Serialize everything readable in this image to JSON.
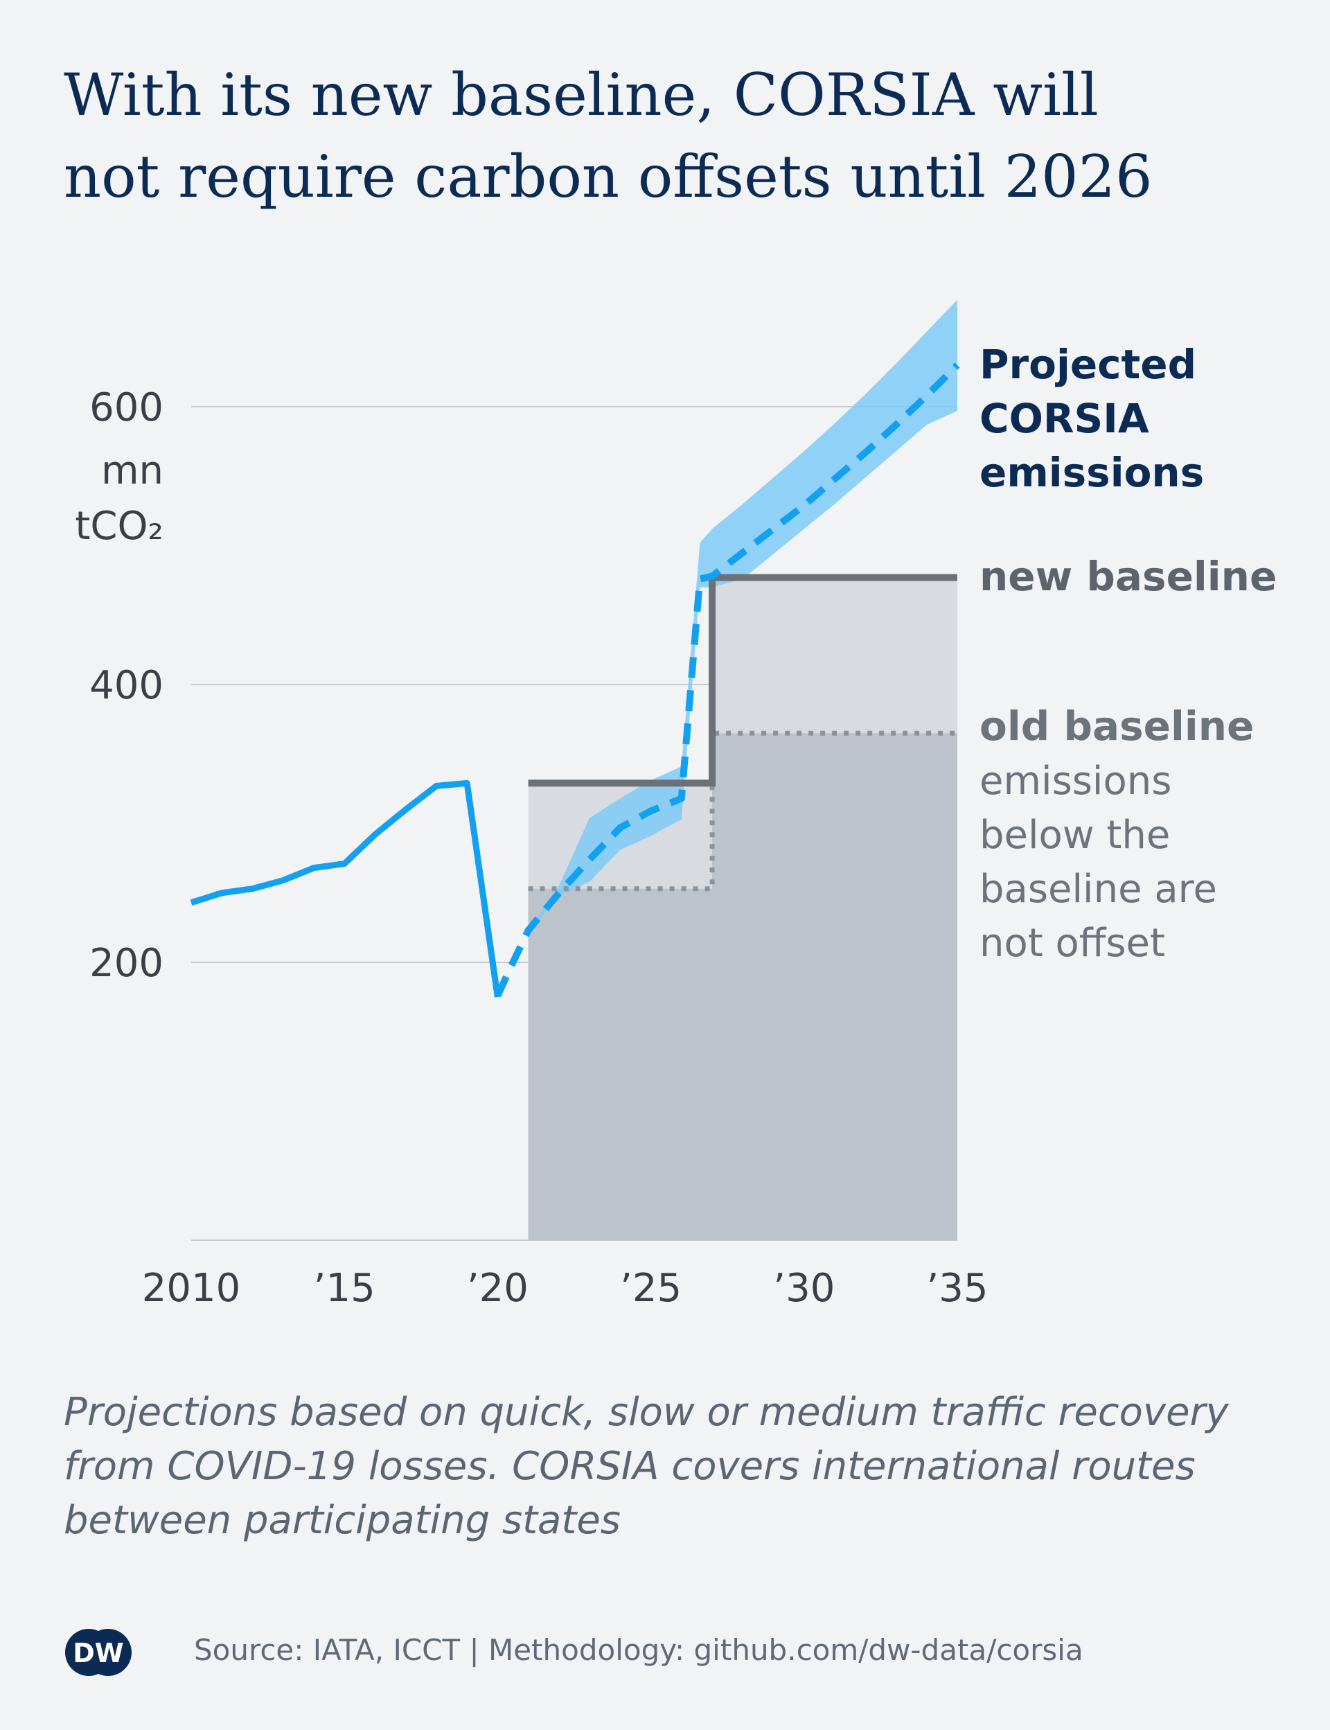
{
  "title_lines": [
    "With its new baseline, CORSIA will",
    "not require carbon offsets until 2026"
  ],
  "chart_data": {
    "type": "line",
    "y_unit_lines": [
      "mn",
      "tCO₂"
    ],
    "xlim": [
      2010,
      2035
    ],
    "ylim": [
      0,
      650
    ],
    "y_ticks": [
      {
        "value": 200,
        "label": "200"
      },
      {
        "value": 400,
        "label": "400"
      },
      {
        "value": 600,
        "label": "600"
      }
    ],
    "x_ticks": [
      {
        "value": 2010,
        "label": "2010"
      },
      {
        "value": 2015,
        "label": "’15"
      },
      {
        "value": 2020,
        "label": "’20"
      },
      {
        "value": 2025,
        "label": "’25"
      },
      {
        "value": 2030,
        "label": "’30"
      },
      {
        "value": 2035,
        "label": "’35"
      }
    ],
    "grid": true,
    "series": [
      {
        "key": "historical",
        "style": "solid",
        "color": "#12a0f0",
        "points": [
          [
            2010,
            243
          ],
          [
            2011,
            250
          ],
          [
            2012,
            253
          ],
          [
            2013,
            259
          ],
          [
            2014,
            268
          ],
          [
            2015,
            271
          ],
          [
            2016,
            292
          ],
          [
            2017,
            310
          ],
          [
            2018,
            327
          ],
          [
            2019,
            329
          ],
          [
            2020,
            175
          ]
        ]
      },
      {
        "key": "projected",
        "name_lines": [
          "Projected",
          "CORSIA",
          "emissions"
        ],
        "style": "dashed",
        "color": "#12a0f0",
        "points": [
          [
            2020,
            176
          ],
          [
            2020.5,
            200
          ],
          [
            2021,
            223
          ],
          [
            2022,
            250
          ],
          [
            2023,
            274
          ],
          [
            2024,
            297
          ],
          [
            2025,
            309
          ],
          [
            2026,
            318
          ],
          [
            2026.6,
            476
          ],
          [
            2027,
            478
          ],
          [
            2028,
            495
          ],
          [
            2029,
            512
          ],
          [
            2030,
            529
          ],
          [
            2031,
            548
          ],
          [
            2032,
            567
          ],
          [
            2033,
            587
          ],
          [
            2034,
            608
          ],
          [
            2035,
            630
          ]
        ],
        "band_upper": [
          [
            2021,
            223
          ],
          [
            2022,
            255
          ],
          [
            2023,
            304
          ],
          [
            2024,
            318
          ],
          [
            2025,
            331
          ],
          [
            2026,
            341
          ],
          [
            2026.6,
            502
          ],
          [
            2027,
            512
          ],
          [
            2028,
            530
          ],
          [
            2029,
            549
          ],
          [
            2030,
            568
          ],
          [
            2031,
            588
          ],
          [
            2032,
            609
          ],
          [
            2033,
            631
          ],
          [
            2034,
            654
          ],
          [
            2035,
            677
          ]
        ],
        "band_lower": [
          [
            2021,
            221
          ],
          [
            2022,
            248
          ],
          [
            2023,
            258
          ],
          [
            2024,
            281
          ],
          [
            2025,
            291
          ],
          [
            2026,
            303
          ],
          [
            2026.6,
            470
          ],
          [
            2027,
            470
          ],
          [
            2028,
            476
          ],
          [
            2029,
            494
          ],
          [
            2030,
            512
          ],
          [
            2031,
            530
          ],
          [
            2032,
            549
          ],
          [
            2033,
            568
          ],
          [
            2034,
            587
          ],
          [
            2035,
            597
          ]
        ]
      },
      {
        "key": "new_baseline",
        "name_lines": [
          "new baseline"
        ],
        "style": "step",
        "color": "#6b7177",
        "points": [
          [
            2021,
            329
          ],
          [
            2027,
            329
          ],
          [
            2027,
            477
          ],
          [
            2035,
            477
          ]
        ]
      },
      {
        "key": "old_baseline",
        "name_lines": [
          "old baseline"
        ],
        "desc_lines": [
          "emissions",
          "below the",
          "baseline are",
          "not offset"
        ],
        "style": "dotted",
        "color": "#8d939a",
        "points": [
          [
            2021,
            253
          ],
          [
            2027,
            253
          ],
          [
            2027,
            365
          ],
          [
            2035,
            365
          ]
        ]
      }
    ]
  },
  "note_lines": [
    "Projections based on quick, slow or medium traffic recovery",
    "from COVID-19 losses. CORSIA covers international routes",
    "between participating states"
  ],
  "source_text": "Source: IATA, ICCT | Methodology: github.com/dw-data/corsia",
  "logo_text": "DW",
  "colors": {
    "background": "#f2f3f5",
    "title": "#0c2b54",
    "emissions": "#12a0f0",
    "band": "#7fcaf7",
    "baseline_fill_light": "#d8dce1",
    "baseline_fill_dark": "#bdc3cb",
    "grid": "#c6cbd1",
    "axis_text": "#3a3f46",
    "label_gray": "#6d737b"
  }
}
